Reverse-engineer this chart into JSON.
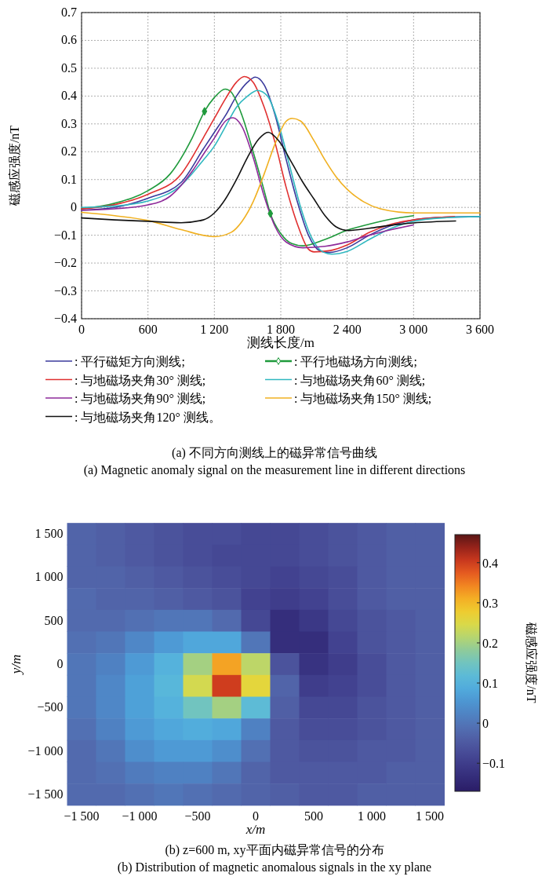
{
  "chart_data": [
    {
      "type": "line",
      "title": "(a) 不同方向测线上的磁异常信号曲线",
      "subtitle": "(a) Magnetic anomaly signal on the measurement line in different directions",
      "xlabel": "测线长度/m",
      "ylabel": "磁感应强度/nT",
      "xlim": [
        0,
        3600
      ],
      "xticks": [
        0,
        600,
        {
          "value": 1200,
          "label": "1 200"
        },
        {
          "value": 1800,
          "label": "1 800"
        },
        {
          "value": 2400,
          "label": "2 400"
        },
        {
          "value": 3000,
          "label": "3 000"
        },
        {
          "value": 3600,
          "label": "3 600"
        }
      ],
      "ylim": [
        -0.4,
        0.7
      ],
      "yticks": [
        {
          "value": -0.4,
          "label": "−0.4"
        },
        {
          "value": -0.3,
          "label": "−0.3"
        },
        {
          "value": -0.2,
          "label": "−0.2"
        },
        {
          "value": -0.1,
          "label": "−0.1"
        },
        0,
        0.1,
        0.2,
        0.3,
        0.4,
        0.5,
        0.6,
        0.7
      ],
      "grid": true,
      "legend": "bottom",
      "series": [
        {
          "name": ": 平行磁矩方向测线;",
          "color": "#3a3a9c",
          "x": [
            0,
            300,
            600,
            900,
            1100,
            1200,
            1300,
            1400,
            1500,
            1570,
            1650,
            1750,
            1850,
            1950,
            2050,
            2150,
            2240,
            2400,
            2600,
            2800,
            3000,
            3300,
            3600
          ],
          "values": [
            -0.01,
            0.0,
            0.033,
            0.09,
            0.21,
            0.27,
            0.33,
            0.4,
            0.45,
            0.468,
            0.44,
            0.33,
            0.17,
            0.02,
            -0.1,
            -0.155,
            -0.162,
            -0.145,
            -0.1,
            -0.065,
            -0.045,
            -0.035,
            -0.033
          ]
        },
        {
          "name": ": 平行地磁场方向测线;",
          "color": "#1f9a3c",
          "x": [
            0,
            300,
            600,
            800,
            1000,
            1111,
            1200,
            1298,
            1350,
            1450,
            1550,
            1650,
            1706,
            1800,
            1900,
            2000,
            2200,
            2400,
            2600,
            2800,
            3000
          ],
          "values": [
            -0.005,
            0.015,
            0.06,
            0.12,
            0.25,
            0.345,
            0.395,
            0.425,
            0.415,
            0.33,
            0.2,
            0.06,
            -0.022,
            -0.094,
            -0.13,
            -0.138,
            -0.115,
            -0.082,
            -0.06,
            -0.042,
            -0.03
          ]
        },
        {
          "name": ": 与地磁场夹角30° 测线;",
          "color": "#e03030",
          "x": [
            0,
            300,
            600,
            900,
            1100,
            1200,
            1300,
            1400,
            1470,
            1550,
            1650,
            1750,
            1850,
            1950,
            2050,
            2100,
            2250,
            2400,
            2600,
            2800,
            3000,
            3370
          ],
          "values": [
            -0.005,
            0.01,
            0.047,
            0.12,
            0.25,
            0.32,
            0.39,
            0.45,
            0.47,
            0.45,
            0.36,
            0.23,
            0.07,
            -0.06,
            -0.15,
            -0.16,
            -0.155,
            -0.135,
            -0.09,
            -0.06,
            -0.045,
            -0.033
          ]
        },
        {
          "name": ": 与地磁场夹角60° 测线;",
          "color": "#30b8c0",
          "x": [
            0,
            300,
            600,
            900,
            1100,
            1200,
            1300,
            1400,
            1500,
            1590,
            1680,
            1780,
            1880,
            1980,
            2080,
            2180,
            2260,
            2400,
            2600,
            2800,
            3000,
            3300,
            3600
          ],
          "values": [
            0.0,
            0.005,
            0.023,
            0.08,
            0.17,
            0.22,
            0.29,
            0.36,
            0.4,
            0.42,
            0.4,
            0.3,
            0.15,
            0.0,
            -0.11,
            -0.16,
            -0.168,
            -0.158,
            -0.115,
            -0.075,
            -0.05,
            -0.037,
            -0.033
          ]
        },
        {
          "name": ": 与地磁场夹角90° 测线;",
          "color": "#8e2a9a",
          "x": [
            0,
            300,
            600,
            800,
            1000,
            1100,
            1200,
            1300,
            1368,
            1450,
            1550,
            1650,
            1750,
            1850,
            2000,
            2200,
            2400,
            2600,
            2800,
            3000
          ],
          "values": [
            -0.01,
            -0.005,
            0.009,
            0.04,
            0.13,
            0.19,
            0.249,
            0.31,
            0.322,
            0.29,
            0.18,
            0.04,
            -0.07,
            -0.125,
            -0.145,
            -0.14,
            -0.124,
            -0.1,
            -0.08,
            -0.063
          ]
        },
        {
          "name": ": 与地磁场夹角150° 测线;",
          "color": "#f0b020",
          "x": [
            0,
            300,
            600,
            900,
            1200,
            1350,
            1450,
            1550,
            1650,
            1750,
            1850,
            1902,
            1980,
            2100,
            2200,
            2300,
            2400,
            2550,
            2700,
            3000,
            3600
          ],
          "values": [
            -0.018,
            -0.03,
            -0.047,
            -0.08,
            -0.105,
            -0.09,
            -0.05,
            0.02,
            0.12,
            0.23,
            0.31,
            0.32,
            0.31,
            0.24,
            0.17,
            0.11,
            0.065,
            0.02,
            -0.005,
            -0.02,
            -0.02
          ]
        },
        {
          "name": ": 与地磁场夹角120° 测线。",
          "color": "#111111",
          "x": [
            0,
            300,
            600,
            900,
            1100,
            1200,
            1300,
            1400,
            1500,
            1600,
            1687,
            1780,
            1900,
            2000,
            2100,
            2200,
            2300,
            2413,
            2600,
            2800,
            3000,
            3380
          ],
          "values": [
            -0.038,
            -0.045,
            -0.05,
            -0.055,
            -0.045,
            -0.02,
            0.03,
            0.1,
            0.18,
            0.245,
            0.27,
            0.24,
            0.16,
            0.09,
            0.03,
            -0.03,
            -0.07,
            -0.083,
            -0.075,
            -0.064,
            -0.056,
            -0.049
          ]
        },
        {
          "type": "scatter",
          "color": "#1f9a3c",
          "marker": "diamond",
          "x": [
            1111,
            1706
          ],
          "values": [
            0.345,
            -0.022
          ]
        }
      ]
    },
    {
      "type": "heatmap",
      "title": "(b) z=600 m, xy平面内磁异常信号的分布",
      "subtitle": "(b) Distribution of magnetic anomalous signals in the xy plane",
      "xlabel": "x/m",
      "ylabel": "y/m",
      "clabel": "磁感应强度/nT",
      "clim": [
        -0.17,
        0.47
      ],
      "cticks": [
        {
          "value": -0.1,
          "label": "−0.1"
        },
        0,
        0.1,
        0.2,
        0.3,
        0.4
      ],
      "categories": [
        "−1 500",
        null,
        "−1 000",
        null,
        "−500",
        null,
        "0",
        null,
        "500",
        null,
        "1 000",
        null,
        "1 500"
      ],
      "y_categories": [
        "1 500",
        null,
        "1 000",
        null,
        "500",
        null,
        "0",
        null,
        "−500",
        null,
        "−1 000",
        null,
        "−1 500"
      ],
      "cells": [
        [
          -0.03,
          -0.04,
          -0.05,
          -0.06,
          -0.07,
          -0.07,
          -0.08,
          -0.08,
          -0.07,
          -0.06,
          -0.05,
          -0.04,
          -0.04
        ],
        [
          -0.03,
          -0.04,
          -0.05,
          -0.06,
          -0.07,
          -0.08,
          -0.08,
          -0.08,
          -0.07,
          -0.06,
          -0.05,
          -0.04,
          -0.04
        ],
        [
          -0.03,
          -0.03,
          -0.04,
          -0.05,
          -0.06,
          -0.07,
          -0.08,
          -0.09,
          -0.08,
          -0.07,
          -0.05,
          -0.04,
          -0.04
        ],
        [
          -0.02,
          -0.03,
          -0.03,
          -0.04,
          -0.05,
          -0.06,
          -0.09,
          -0.1,
          -0.09,
          -0.07,
          -0.05,
          -0.04,
          -0.04
        ],
        [
          -0.02,
          -0.02,
          -0.01,
          0.0,
          0.0,
          -0.02,
          -0.08,
          -0.13,
          -0.11,
          -0.08,
          -0.06,
          -0.05,
          -0.04
        ],
        [
          -0.01,
          0.0,
          0.03,
          0.06,
          0.08,
          0.08,
          0.0,
          -0.13,
          -0.13,
          -0.09,
          -0.06,
          -0.05,
          -0.04
        ],
        [
          0.0,
          0.02,
          0.06,
          0.1,
          0.2,
          0.32,
          0.22,
          -0.06,
          -0.12,
          -0.1,
          -0.07,
          -0.05,
          -0.04
        ],
        [
          0.0,
          0.03,
          0.07,
          0.11,
          0.24,
          0.4,
          0.26,
          -0.03,
          -0.1,
          -0.09,
          -0.07,
          -0.05,
          -0.04
        ],
        [
          0.0,
          0.03,
          0.07,
          0.1,
          0.15,
          0.2,
          0.12,
          -0.04,
          -0.08,
          -0.08,
          -0.06,
          -0.05,
          -0.04
        ],
        [
          -0.01,
          0.02,
          0.06,
          0.08,
          0.09,
          0.08,
          0.02,
          -0.05,
          -0.07,
          -0.07,
          -0.06,
          -0.05,
          -0.04
        ],
        [
          -0.02,
          0.0,
          0.04,
          0.06,
          0.06,
          0.04,
          -0.01,
          -0.05,
          -0.06,
          -0.06,
          -0.05,
          -0.05,
          -0.04
        ],
        [
          -0.02,
          -0.01,
          0.01,
          0.02,
          0.02,
          0.0,
          -0.03,
          -0.05,
          -0.05,
          -0.05,
          -0.05,
          -0.04,
          -0.04
        ],
        [
          -0.02,
          -0.02,
          -0.01,
          0.0,
          -0.01,
          -0.02,
          -0.03,
          -0.04,
          -0.05,
          -0.05,
          -0.04,
          -0.04,
          -0.04
        ]
      ]
    }
  ]
}
